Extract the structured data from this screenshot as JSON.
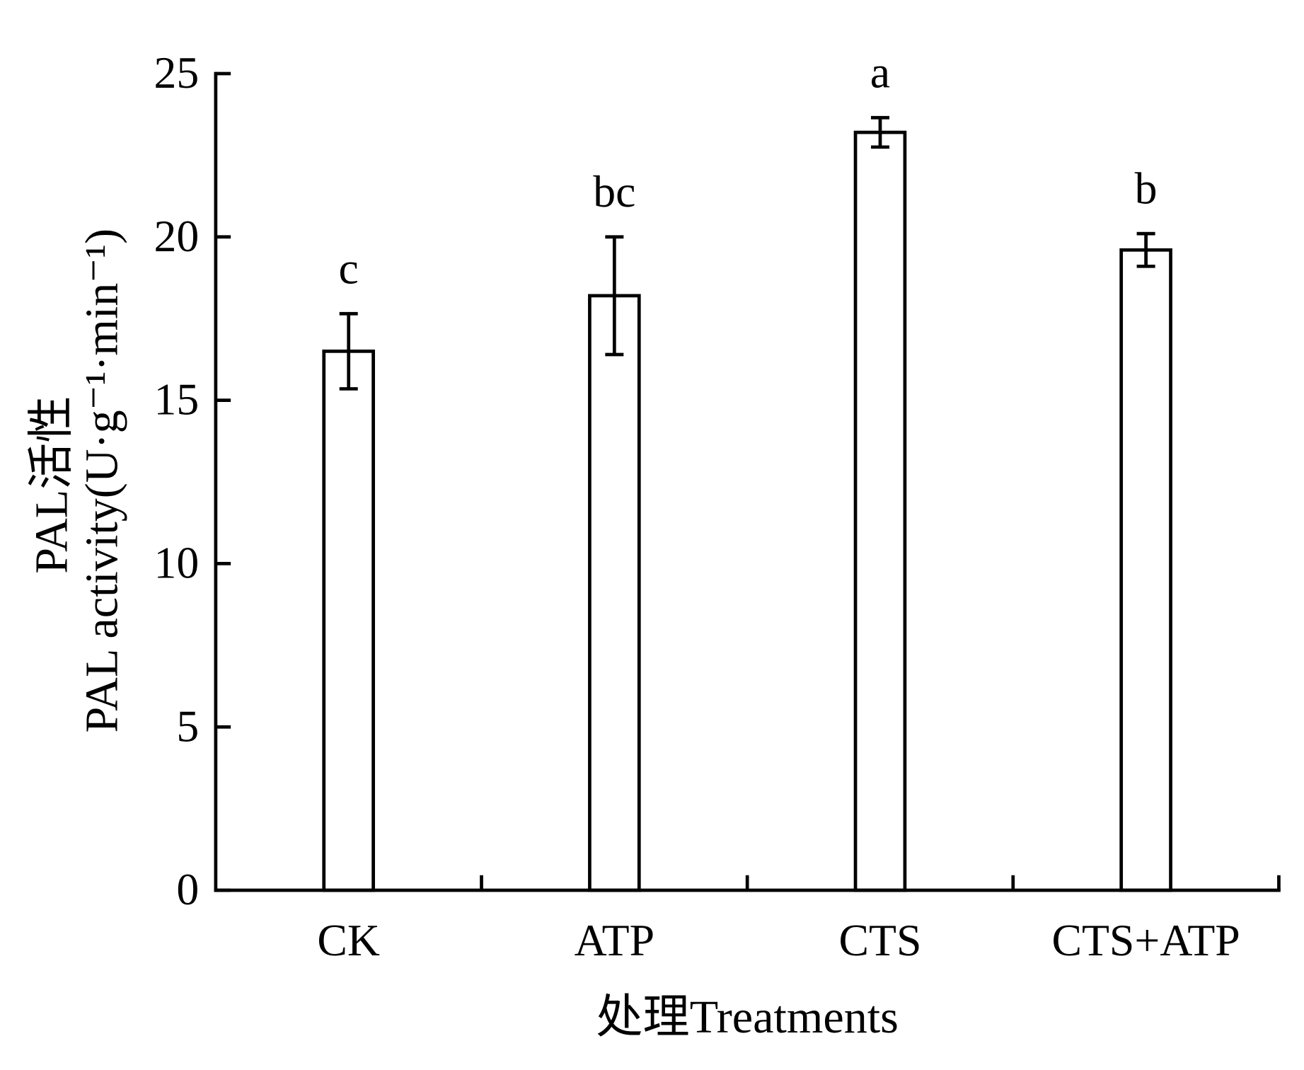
{
  "chart_data": {
    "type": "bar",
    "categories": [
      "CK",
      "ATP",
      "CTS",
      "CTS+ATP"
    ],
    "values": [
      16.5,
      18.2,
      23.2,
      19.6
    ],
    "errors": [
      1.15,
      1.8,
      0.45,
      0.5
    ],
    "significance_labels": [
      "c",
      "bc",
      "a",
      "b"
    ],
    "ylabel_lines": [
      "PAL活性",
      "PAL activity(U·g⁻¹·min⁻¹)"
    ],
    "xlabel": "处理Treatments",
    "ylim": [
      0,
      25
    ],
    "yticks": [
      0,
      5,
      10,
      15,
      20,
      25
    ],
    "grid": false,
    "legend": "none",
    "colors": {
      "bar_fill": "#ffffff",
      "stroke": "#000000"
    }
  }
}
